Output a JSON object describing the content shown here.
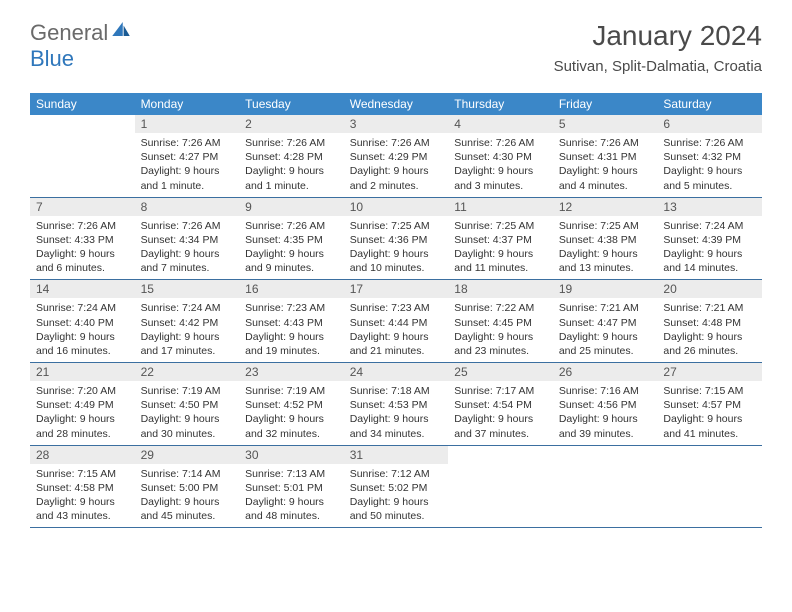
{
  "logo": {
    "part1": "General",
    "part2": "Blue"
  },
  "title": "January 2024",
  "location": "Sutivan, Split-Dalmatia, Croatia",
  "colors": {
    "header_bg": "#3b87c8",
    "header_text": "#ffffff",
    "daynum_bg": "#ececec",
    "row_border": "#3b6fa0",
    "logo_blue": "#2f77bb",
    "logo_gray": "#6a6a6a"
  },
  "day_headers": [
    "Sunday",
    "Monday",
    "Tuesday",
    "Wednesday",
    "Thursday",
    "Friday",
    "Saturday"
  ],
  "layout": {
    "columns": 7,
    "rows": 5,
    "first_weekday_index": 1,
    "days_in_month": 31
  },
  "days": [
    {
      "n": 1,
      "sunrise": "7:26 AM",
      "sunset": "4:27 PM",
      "daylight": "9 hours and 1 minute."
    },
    {
      "n": 2,
      "sunrise": "7:26 AM",
      "sunset": "4:28 PM",
      "daylight": "9 hours and 1 minute."
    },
    {
      "n": 3,
      "sunrise": "7:26 AM",
      "sunset": "4:29 PM",
      "daylight": "9 hours and 2 minutes."
    },
    {
      "n": 4,
      "sunrise": "7:26 AM",
      "sunset": "4:30 PM",
      "daylight": "9 hours and 3 minutes."
    },
    {
      "n": 5,
      "sunrise": "7:26 AM",
      "sunset": "4:31 PM",
      "daylight": "9 hours and 4 minutes."
    },
    {
      "n": 6,
      "sunrise": "7:26 AM",
      "sunset": "4:32 PM",
      "daylight": "9 hours and 5 minutes."
    },
    {
      "n": 7,
      "sunrise": "7:26 AM",
      "sunset": "4:33 PM",
      "daylight": "9 hours and 6 minutes."
    },
    {
      "n": 8,
      "sunrise": "7:26 AM",
      "sunset": "4:34 PM",
      "daylight": "9 hours and 7 minutes."
    },
    {
      "n": 9,
      "sunrise": "7:26 AM",
      "sunset": "4:35 PM",
      "daylight": "9 hours and 9 minutes."
    },
    {
      "n": 10,
      "sunrise": "7:25 AM",
      "sunset": "4:36 PM",
      "daylight": "9 hours and 10 minutes."
    },
    {
      "n": 11,
      "sunrise": "7:25 AM",
      "sunset": "4:37 PM",
      "daylight": "9 hours and 11 minutes."
    },
    {
      "n": 12,
      "sunrise": "7:25 AM",
      "sunset": "4:38 PM",
      "daylight": "9 hours and 13 minutes."
    },
    {
      "n": 13,
      "sunrise": "7:24 AM",
      "sunset": "4:39 PM",
      "daylight": "9 hours and 14 minutes."
    },
    {
      "n": 14,
      "sunrise": "7:24 AM",
      "sunset": "4:40 PM",
      "daylight": "9 hours and 16 minutes."
    },
    {
      "n": 15,
      "sunrise": "7:24 AM",
      "sunset": "4:42 PM",
      "daylight": "9 hours and 17 minutes."
    },
    {
      "n": 16,
      "sunrise": "7:23 AM",
      "sunset": "4:43 PM",
      "daylight": "9 hours and 19 minutes."
    },
    {
      "n": 17,
      "sunrise": "7:23 AM",
      "sunset": "4:44 PM",
      "daylight": "9 hours and 21 minutes."
    },
    {
      "n": 18,
      "sunrise": "7:22 AM",
      "sunset": "4:45 PM",
      "daylight": "9 hours and 23 minutes."
    },
    {
      "n": 19,
      "sunrise": "7:21 AM",
      "sunset": "4:47 PM",
      "daylight": "9 hours and 25 minutes."
    },
    {
      "n": 20,
      "sunrise": "7:21 AM",
      "sunset": "4:48 PM",
      "daylight": "9 hours and 26 minutes."
    },
    {
      "n": 21,
      "sunrise": "7:20 AM",
      "sunset": "4:49 PM",
      "daylight": "9 hours and 28 minutes."
    },
    {
      "n": 22,
      "sunrise": "7:19 AM",
      "sunset": "4:50 PM",
      "daylight": "9 hours and 30 minutes."
    },
    {
      "n": 23,
      "sunrise": "7:19 AM",
      "sunset": "4:52 PM",
      "daylight": "9 hours and 32 minutes."
    },
    {
      "n": 24,
      "sunrise": "7:18 AM",
      "sunset": "4:53 PM",
      "daylight": "9 hours and 34 minutes."
    },
    {
      "n": 25,
      "sunrise": "7:17 AM",
      "sunset": "4:54 PM",
      "daylight": "9 hours and 37 minutes."
    },
    {
      "n": 26,
      "sunrise": "7:16 AM",
      "sunset": "4:56 PM",
      "daylight": "9 hours and 39 minutes."
    },
    {
      "n": 27,
      "sunrise": "7:15 AM",
      "sunset": "4:57 PM",
      "daylight": "9 hours and 41 minutes."
    },
    {
      "n": 28,
      "sunrise": "7:15 AM",
      "sunset": "4:58 PM",
      "daylight": "9 hours and 43 minutes."
    },
    {
      "n": 29,
      "sunrise": "7:14 AM",
      "sunset": "5:00 PM",
      "daylight": "9 hours and 45 minutes."
    },
    {
      "n": 30,
      "sunrise": "7:13 AM",
      "sunset": "5:01 PM",
      "daylight": "9 hours and 48 minutes."
    },
    {
      "n": 31,
      "sunrise": "7:12 AM",
      "sunset": "5:02 PM",
      "daylight": "9 hours and 50 minutes."
    }
  ],
  "labels": {
    "sunrise": "Sunrise: ",
    "sunset": "Sunset: ",
    "daylight": "Daylight: "
  }
}
